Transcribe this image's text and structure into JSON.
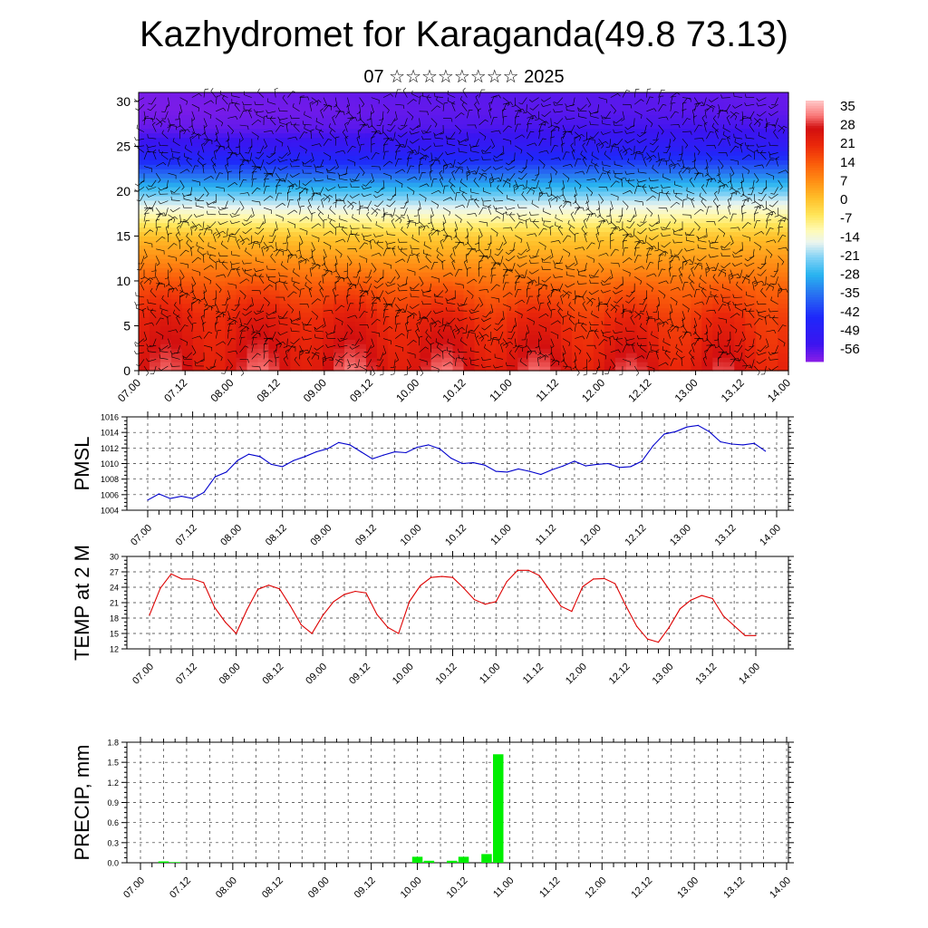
{
  "title": "Kazhydromet for Karaganda(49.8 73.13)",
  "subtitle": "07 ☆☆☆☆☆☆☆☆ 2025",
  "colors": {
    "pmsl_line": "#0000cc",
    "temp_line": "#dd0000",
    "precip_bar": "#00ee00",
    "grid": "#000000"
  },
  "chart_data": [
    {
      "type": "heatmap",
      "ylabel": "",
      "ylim": [
        0,
        31
      ],
      "yticks": [
        0,
        5,
        10,
        15,
        20,
        25,
        30
      ],
      "x_tick_labels": [
        "07.00",
        "07.12",
        "08.00",
        "08.12",
        "09.00",
        "09.12",
        "10.00",
        "10.12",
        "11.00",
        "11.12",
        "12.00",
        "12.12",
        "13.00",
        "13.12",
        "14.00"
      ],
      "colorbar_labels": [
        "35",
        "28",
        "21",
        "14",
        "7",
        "0",
        "-7",
        "-14",
        "-21",
        "-28",
        "-35",
        "-42",
        "-49",
        "-56"
      ],
      "colorbar_range": [
        -63,
        42
      ],
      "overlay": "wind barbs",
      "temp_profile_levels": [
        0,
        3,
        6,
        9,
        12,
        15,
        17,
        19,
        21,
        23,
        25,
        27,
        29,
        31
      ],
      "temp_profile_values": [
        30,
        27,
        24,
        18,
        10,
        2,
        -8,
        -18,
        -30,
        -42,
        -52,
        -58,
        -60,
        -60
      ],
      "diurnal_amplitude_surface": 5
    },
    {
      "type": "line",
      "ylabel": "PMSL",
      "ylim": [
        1004,
        1016
      ],
      "yticks": [
        1004,
        1006,
        1008,
        1010,
        1012,
        1014,
        1016
      ],
      "x_tick_labels": [
        "07.00",
        "07.12",
        "08.00",
        "08.12",
        "09.00",
        "09.12",
        "10.00",
        "10.12",
        "11.00",
        "11.12",
        "12.00",
        "12.12",
        "13.00",
        "13.12",
        "14.00"
      ],
      "x_hours": [
        0,
        3,
        6,
        9,
        12,
        15,
        18,
        21,
        24,
        27,
        30,
        33,
        36,
        39,
        42,
        45,
        48,
        51,
        54,
        57,
        60,
        63,
        66,
        69,
        72,
        75,
        78,
        81,
        84,
        87,
        90,
        93,
        96,
        99,
        102,
        105,
        108,
        111,
        114,
        117,
        120,
        123,
        126,
        129,
        132,
        135,
        138,
        141,
        144,
        147,
        150,
        153,
        156,
        159,
        162,
        165
      ],
      "values": [
        1005.3,
        1006.1,
        1005.5,
        1005.8,
        1005.5,
        1006.3,
        1008.3,
        1008.9,
        1010.4,
        1011.2,
        1010.9,
        1009.9,
        1009.6,
        1010.4,
        1010.9,
        1011.5,
        1011.9,
        1012.7,
        1012.4,
        1011.5,
        1010.6,
        1011.1,
        1011.5,
        1011.4,
        1012.1,
        1012.4,
        1011.9,
        1010.7,
        1010.0,
        1010.1,
        1009.8,
        1009.0,
        1008.9,
        1009.3,
        1009.0,
        1008.6,
        1009.2,
        1009.7,
        1010.3,
        1009.7,
        1009.9,
        1010.0,
        1009.5,
        1009.6,
        1010.3,
        1012.3,
        1013.8,
        1014.1,
        1014.7,
        1014.9,
        1014.1,
        1012.8,
        1012.5,
        1012.4,
        1012.6,
        1011.6
      ],
      "last_value": 1011.6
    },
    {
      "type": "line",
      "ylabel": "TEMP at 2 M",
      "ylim": [
        12,
        30
      ],
      "yticks": [
        12,
        15,
        18,
        21,
        24,
        27,
        30
      ],
      "x_tick_labels": [
        "07.00",
        "07.12",
        "08.00",
        "08.12",
        "09.00",
        "09.12",
        "10.00",
        "10.12",
        "11.00",
        "11.12",
        "12.00",
        "12.12",
        "13.00",
        "13.12",
        "14.00"
      ],
      "x_hours": [
        0,
        3,
        6,
        9,
        12,
        15,
        18,
        21,
        24,
        27,
        30,
        33,
        36,
        39,
        42,
        45,
        48,
        51,
        54,
        57,
        60,
        63,
        66,
        69,
        72,
        75,
        78,
        81,
        84,
        87,
        90,
        93,
        96,
        99,
        102,
        105,
        108,
        111,
        114,
        117,
        120,
        123,
        126,
        129,
        132,
        135,
        138,
        141,
        144,
        147,
        150,
        153,
        156,
        159,
        162,
        165,
        168
      ],
      "values": [
        18.6,
        23.8,
        26.6,
        25.6,
        25.6,
        24.9,
        20.1,
        17.2,
        15.0,
        19.6,
        23.6,
        24.4,
        23.7,
        20.4,
        16.7,
        15.0,
        18.5,
        21.2,
        22.6,
        23.2,
        22.9,
        18.7,
        16.2,
        15.0,
        21.2,
        24.3,
        25.9,
        26.1,
        25.9,
        23.9,
        21.6,
        20.7,
        21.2,
        25.1,
        27.3,
        27.3,
        26.3,
        23.3,
        20.3,
        19.3,
        24.1,
        25.6,
        25.7,
        24.7,
        20.4,
        16.4,
        13.9,
        13.3,
        16.2,
        19.8,
        21.5,
        22.4,
        21.8,
        18.4,
        16.5,
        14.6,
        14.6
      ]
    },
    {
      "type": "bar",
      "ylabel": "PRECIP, mm",
      "ylim": [
        0,
        1.8
      ],
      "yticks": [
        "0.0",
        "0.3",
        "0.6",
        "0.9",
        "1.2",
        "1.5",
        "1.8"
      ],
      "x_tick_labels": [
        "07.00",
        "07.12",
        "08.00",
        "08.12",
        "09.00",
        "09.12",
        "10.00",
        "10.12",
        "11.00",
        "11.12",
        "12.00",
        "12.12",
        "13.00",
        "13.12",
        "14.00"
      ],
      "bar_hours": [
        6,
        9,
        72,
        75,
        81,
        84,
        90,
        93
      ],
      "values": [
        0.02,
        0.01,
        0.09,
        0.03,
        0.03,
        0.09,
        0.13,
        1.62
      ]
    }
  ]
}
